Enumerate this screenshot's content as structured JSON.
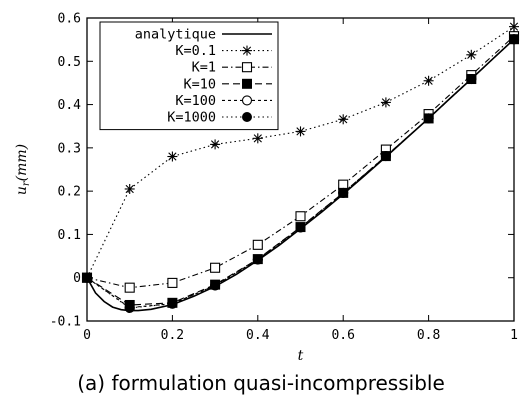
{
  "chart_data": {
    "type": "line",
    "title": "",
    "xlabel": "t",
    "ylabel": "u_r(mm)",
    "ylabel_main": "u",
    "ylabel_sub": "r",
    "ylabel_unit": "(mm)",
    "xlim": [
      0,
      1
    ],
    "ylim": [
      -0.1,
      0.6
    ],
    "xticks": [
      0,
      0.2,
      0.4,
      0.6,
      0.8,
      1
    ],
    "xtick_labels": [
      "0",
      "0.2",
      "0.4",
      "0.6",
      "0.8",
      "1"
    ],
    "yticks": [
      -0.1,
      0,
      0.1,
      0.2,
      0.3,
      0.4,
      0.5,
      0.6
    ],
    "ytick_labels": [
      "-0.1",
      "0",
      "0.1",
      "0.2",
      "0.3",
      "0.4",
      "0.5",
      "0.6"
    ],
    "grid": false,
    "legend_position": "top-left",
    "series": [
      {
        "name": "analytique",
        "style": "solid",
        "marker": "none",
        "x": [
          0,
          0.02,
          0.04,
          0.06,
          0.08,
          0.1,
          0.12,
          0.15,
          0.2,
          0.25,
          0.3,
          0.35,
          0.4,
          0.45,
          0.5,
          0.55,
          0.6,
          0.65,
          0.7,
          0.75,
          0.8,
          0.85,
          0.9,
          0.95,
          1.0
        ],
        "y": [
          0,
          -0.035,
          -0.055,
          -0.068,
          -0.074,
          -0.076,
          -0.076,
          -0.073,
          -0.062,
          -0.043,
          -0.02,
          0.008,
          0.04,
          0.075,
          0.113,
          0.152,
          0.193,
          0.236,
          0.279,
          0.324,
          0.368,
          0.414,
          0.459,
          0.505,
          0.551
        ]
      },
      {
        "name": "K=0.1",
        "style": "dotted",
        "marker": "star",
        "x": [
          0,
          0.1,
          0.2,
          0.3,
          0.4,
          0.5,
          0.6,
          0.7,
          0.8,
          0.9,
          1.0
        ],
        "y": [
          0,
          0.205,
          0.28,
          0.308,
          0.322,
          0.338,
          0.366,
          0.405,
          0.455,
          0.515,
          0.58
        ]
      },
      {
        "name": "K=1",
        "style": "dashdot",
        "marker": "open-square",
        "x": [
          0,
          0.1,
          0.2,
          0.3,
          0.4,
          0.5,
          0.6,
          0.7,
          0.8,
          0.9,
          1.0
        ],
        "y": [
          0,
          -0.023,
          -0.012,
          0.023,
          0.076,
          0.142,
          0.215,
          0.296,
          0.378,
          0.468,
          0.558
        ]
      },
      {
        "name": "K=10",
        "style": "dashed",
        "marker": "filled-square",
        "x": [
          0,
          0.1,
          0.2,
          0.3,
          0.4,
          0.5,
          0.6,
          0.7,
          0.8,
          0.9,
          1.0
        ],
        "y": [
          0,
          -0.063,
          -0.058,
          -0.016,
          0.043,
          0.117,
          0.196,
          0.281,
          0.368,
          0.459,
          0.551
        ]
      },
      {
        "name": "K=100",
        "style": "shortdash",
        "marker": "open-circle",
        "x": [
          0,
          0.1,
          0.2,
          0.3,
          0.4,
          0.5,
          0.6,
          0.7,
          0.8,
          0.9,
          1.0
        ],
        "y": [
          0,
          -0.069,
          -0.06,
          -0.018,
          0.042,
          0.116,
          0.196,
          0.281,
          0.368,
          0.459,
          0.551
        ]
      },
      {
        "name": "K=1000",
        "style": "dotted",
        "marker": "filled-circle",
        "x": [
          0,
          0.1,
          0.2,
          0.3,
          0.4,
          0.5,
          0.6,
          0.7,
          0.8,
          0.9,
          1.0
        ],
        "y": [
          0,
          -0.07,
          -0.06,
          -0.018,
          0.042,
          0.116,
          0.196,
          0.281,
          0.368,
          0.459,
          0.551
        ]
      }
    ]
  },
  "caption": "(a)  formulation quasi-incompressible"
}
